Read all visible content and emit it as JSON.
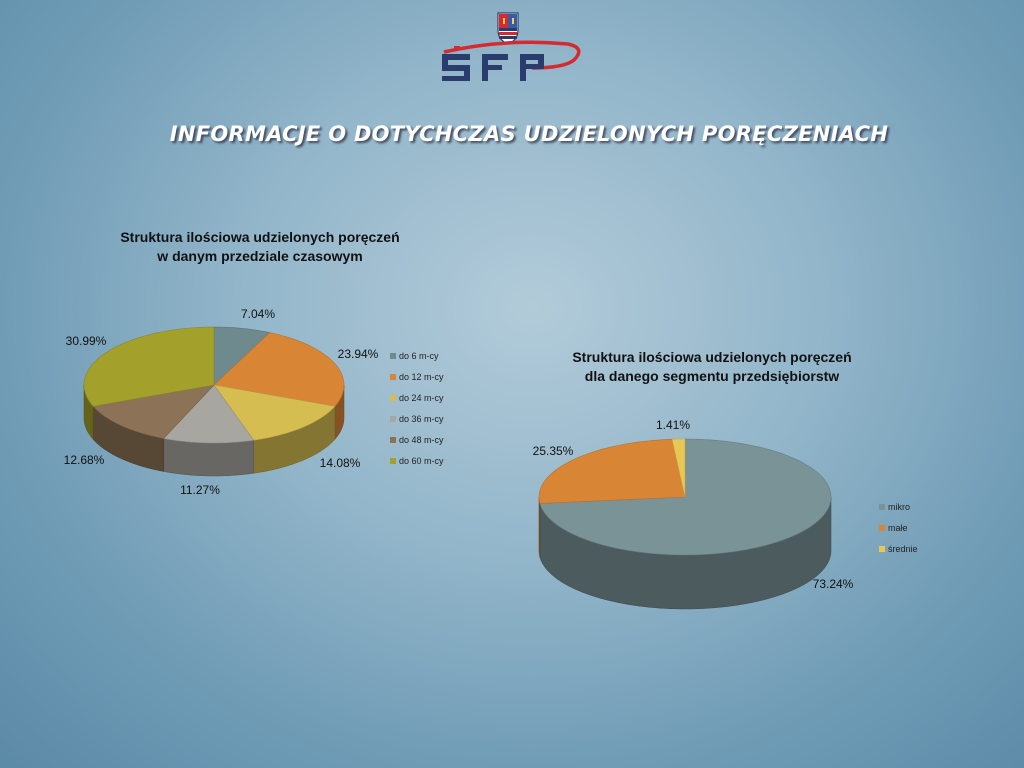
{
  "header": {
    "logo_text": "ŚFP",
    "title": "INFORMACJE O DOTYCHCZAS UDZIELONYCH PORĘCZENIACH"
  },
  "colors": {
    "brand_navy": "#2a3c6e",
    "brand_red": "#d42a30"
  },
  "chart_data": [
    {
      "type": "pie",
      "title": "Struktura ilościowa udzielonych poręczeń\nw danym przedziale czasowym",
      "legend_position": "right",
      "slices": [
        {
          "label": "do 6 m-cy",
          "value": 7.04,
          "value_label": "7.04%",
          "color": "#6f8a8e"
        },
        {
          "label": "do 12 m-cy",
          "value": 23.94,
          "value_label": "23.94%",
          "color": "#d98536"
        },
        {
          "label": "do 24 m-cy",
          "value": 14.08,
          "value_label": "14.08%",
          "color": "#d6bd52"
        },
        {
          "label": "do 36 m-cy",
          "value": 11.27,
          "value_label": "11.27%",
          "color": "#a8a6a0"
        },
        {
          "label": "do 48 m-cy",
          "value": 12.68,
          "value_label": "12.68%",
          "color": "#8c7256"
        },
        {
          "label": "do 60 m-cy",
          "value": 30.99,
          "value_label": "30.99%",
          "color": "#a3a02c"
        }
      ]
    },
    {
      "type": "pie",
      "title": "Struktura ilościowa udzielonych poręczeń\ndla danego segmentu przedsiębiorstw",
      "legend_position": "right",
      "slices": [
        {
          "label": "mikro",
          "value": 73.24,
          "value_label": "73.24%",
          "color": "#7a9396"
        },
        {
          "label": "małe",
          "value": 25.35,
          "value_label": "25.35%",
          "color": "#d98536"
        },
        {
          "label": "średnie",
          "value": 1.41,
          "value_label": "1.41%",
          "color": "#e8c854"
        }
      ]
    }
  ]
}
